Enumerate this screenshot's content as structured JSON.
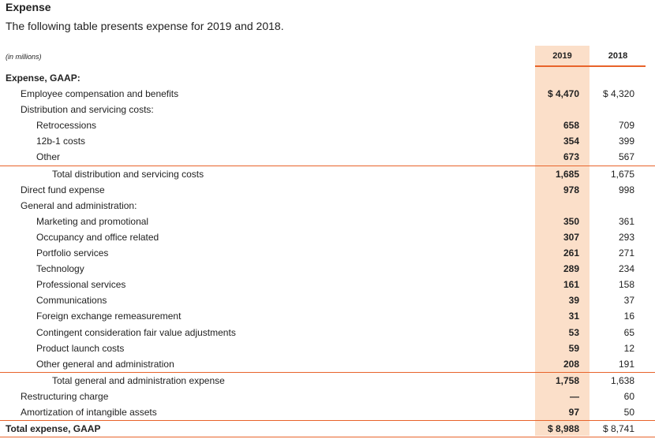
{
  "title": "Expense",
  "subtitle": "The following table presents expense for 2019 and 2018.",
  "units_note": "(in millions)",
  "columns": [
    "2019",
    "2018"
  ],
  "rows": [
    {
      "label": "Expense, GAAP:",
      "indent": 0,
      "bold": true,
      "v2019": "",
      "v2018": ""
    },
    {
      "label": "Employee compensation and benefits",
      "indent": 1,
      "v2019": "$ 4,470",
      "v2018": "$ 4,320"
    },
    {
      "label": "Distribution and servicing costs:",
      "indent": 1,
      "v2019": "",
      "v2018": ""
    },
    {
      "label": "Retrocessions",
      "indent": 2,
      "v2019": "658",
      "v2018": "709"
    },
    {
      "label": "12b-1 costs",
      "indent": 2,
      "v2019": "354",
      "v2018": "399"
    },
    {
      "label": "Other",
      "indent": 2,
      "v2019": "673",
      "v2018": "567"
    },
    {
      "label": "Total distribution and servicing costs",
      "indent": 3,
      "rule": true,
      "v2019": "1,685",
      "v2018": "1,675"
    },
    {
      "label": "Direct fund expense",
      "indent": 1,
      "v2019": "978",
      "v2018": "998"
    },
    {
      "label": "General and administration:",
      "indent": 1,
      "v2019": "",
      "v2018": ""
    },
    {
      "label": "Marketing and promotional",
      "indent": 2,
      "v2019": "350",
      "v2018": "361"
    },
    {
      "label": "Occupancy and office related",
      "indent": 2,
      "v2019": "307",
      "v2018": "293"
    },
    {
      "label": "Portfolio services",
      "indent": 2,
      "v2019": "261",
      "v2018": "271"
    },
    {
      "label": "Technology",
      "indent": 2,
      "v2019": "289",
      "v2018": "234"
    },
    {
      "label": "Professional services",
      "indent": 2,
      "v2019": "161",
      "v2018": "158"
    },
    {
      "label": "Communications",
      "indent": 2,
      "v2019": "39",
      "v2018": "37"
    },
    {
      "label": "Foreign exchange remeasurement",
      "indent": 2,
      "v2019": "31",
      "v2018": "16"
    },
    {
      "label": "Contingent consideration fair value adjustments",
      "indent": 2,
      "v2019": "53",
      "v2018": "65"
    },
    {
      "label": "Product launch costs",
      "indent": 2,
      "v2019": "59",
      "v2018": "12"
    },
    {
      "label": "Other general and administration",
      "indent": 2,
      "v2019": "208",
      "v2018": "191"
    },
    {
      "label": "Total general and administration expense",
      "indent": 3,
      "rule": true,
      "v2019": "1,758",
      "v2018": "1,638"
    },
    {
      "label": "Restructuring charge",
      "indent": 1,
      "v2019": "—",
      "v2018": "60"
    },
    {
      "label": "Amortization of intangible assets",
      "indent": 1,
      "v2019": "97",
      "v2018": "50"
    },
    {
      "label": "Total expense, GAAP",
      "indent": 0,
      "bold": true,
      "final": true,
      "v2019": "$ 8,988",
      "v2018": "$ 8,741"
    }
  ],
  "colors": {
    "accent": "#e8632a",
    "highlight": "#fbdfc9"
  }
}
